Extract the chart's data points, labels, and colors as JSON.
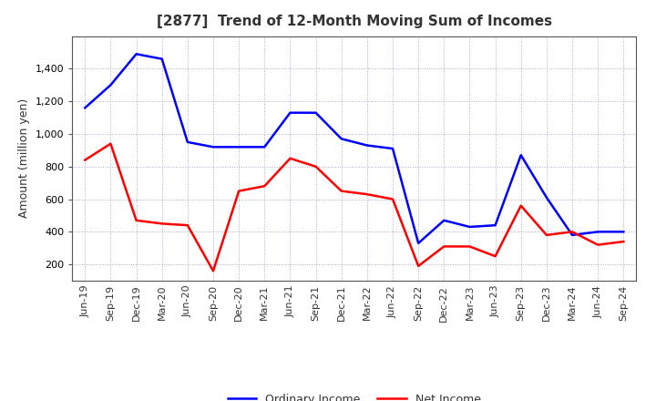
{
  "title": "[2877]  Trend of 12-Month Moving Sum of Incomes",
  "ylabel": "Amount (million yen)",
  "xlabels": [
    "Jun-19",
    "Sep-19",
    "Dec-19",
    "Mar-20",
    "Jun-20",
    "Sep-20",
    "Dec-20",
    "Mar-21",
    "Jun-21",
    "Sep-21",
    "Dec-21",
    "Mar-22",
    "Jun-22",
    "Sep-22",
    "Dec-22",
    "Mar-23",
    "Jun-23",
    "Sep-23",
    "Dec-23",
    "Mar-24",
    "Jun-24",
    "Sep-24"
  ],
  "ordinary_income": [
    1160,
    1300,
    1490,
    1460,
    950,
    920,
    920,
    920,
    1130,
    1130,
    970,
    930,
    910,
    330,
    470,
    430,
    440,
    870,
    610,
    380,
    400,
    400
  ],
  "net_income": [
    840,
    940,
    470,
    450,
    440,
    160,
    650,
    680,
    850,
    800,
    650,
    630,
    600,
    190,
    310,
    310,
    250,
    560,
    380,
    400,
    320,
    340
  ],
  "ordinary_color": "#0000FF",
  "net_color": "#FF0000",
  "ylim": [
    100,
    1600
  ],
  "yticks": [
    200,
    400,
    600,
    800,
    1000,
    1200,
    1400
  ],
  "background_color": "#FFFFFF",
  "grid_color": "#AAAACC",
  "title_fontsize": 11,
  "title_color": "#333333",
  "axis_label_fontsize": 9,
  "tick_fontsize": 8,
  "legend_fontsize": 9,
  "line_width": 1.8
}
